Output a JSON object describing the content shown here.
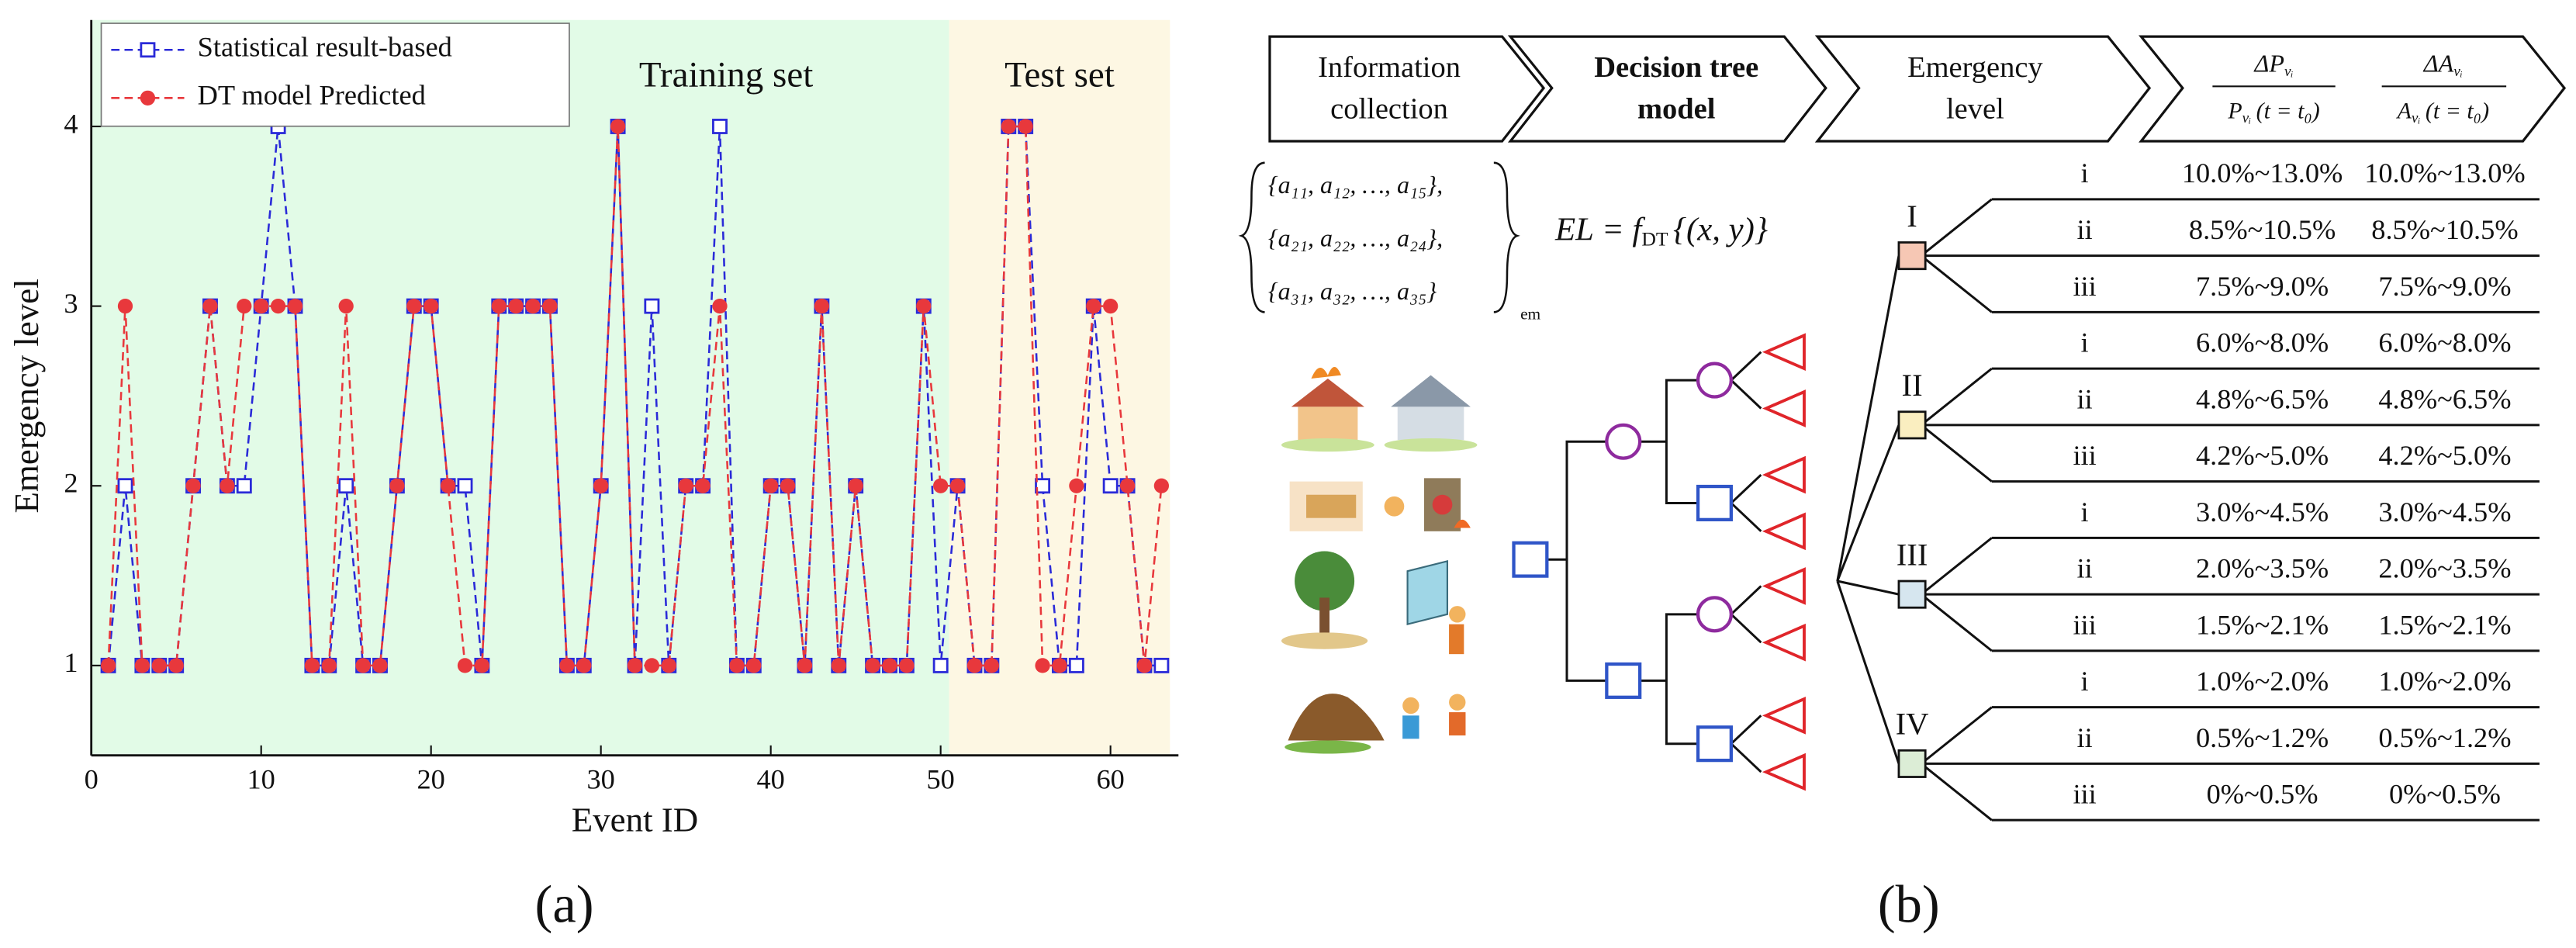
{
  "chart_data": {
    "type": "line",
    "x_label": "Event ID",
    "y_label": "Emergency level",
    "xlim": [
      0,
      64
    ],
    "ylim": [
      0.5,
      4.5
    ],
    "xticks": [
      0,
      10,
      20,
      30,
      40,
      50,
      60
    ],
    "yticks": [
      1,
      2,
      3,
      4
    ],
    "regions": [
      {
        "label": "Training set",
        "range": [
          0,
          50.5
        ],
        "color": "#e2fbe7"
      },
      {
        "label": "Test set",
        "range": [
          50.5,
          63.5
        ],
        "color": "#fdf7e3"
      }
    ],
    "x": [
      1,
      2,
      3,
      4,
      5,
      6,
      7,
      8,
      9,
      10,
      11,
      12,
      13,
      14,
      15,
      16,
      17,
      18,
      19,
      20,
      21,
      22,
      23,
      24,
      25,
      26,
      27,
      28,
      29,
      30,
      31,
      32,
      33,
      34,
      35,
      36,
      37,
      38,
      39,
      40,
      41,
      42,
      43,
      44,
      45,
      46,
      47,
      48,
      49,
      50,
      51,
      52,
      53,
      54,
      55,
      56,
      57,
      58,
      59,
      60,
      61,
      62,
      63
    ],
    "series": [
      {
        "name": "Statistical result-based",
        "color": "#2a2ad8",
        "marker": "open-square",
        "values": [
          1,
          2,
          1,
          1,
          1,
          2,
          3,
          2,
          2,
          3,
          4,
          3,
          1,
          1,
          2,
          1,
          1,
          2,
          3,
          3,
          2,
          2,
          1,
          3,
          3,
          3,
          3,
          1,
          1,
          2,
          4,
          1,
          3,
          1,
          2,
          2,
          4,
          1,
          1,
          2,
          2,
          1,
          3,
          1,
          2,
          1,
          1,
          1,
          3,
          1,
          2,
          1,
          1,
          4,
          4,
          2,
          1,
          1,
          3,
          2,
          2,
          1,
          1
        ]
      },
      {
        "name": "DT model Predicted",
        "color": "#e8383c",
        "marker": "circle",
        "values": [
          1,
          3,
          1,
          1,
          1,
          2,
          3,
          2,
          3,
          3,
          3,
          3,
          1,
          1,
          3,
          1,
          1,
          2,
          3,
          3,
          2,
          1,
          1,
          3,
          3,
          3,
          3,
          1,
          1,
          2,
          4,
          1,
          1,
          1,
          2,
          2,
          3,
          1,
          1,
          2,
          2,
          1,
          3,
          1,
          2,
          1,
          1,
          1,
          3,
          2,
          2,
          1,
          1,
          4,
          4,
          1,
          1,
          2,
          3,
          3,
          2,
          1,
          2
        ]
      }
    ],
    "legend": "upper left"
  },
  "panel_labels": [
    "(a)",
    "(b)"
  ],
  "diagram": {
    "header": [
      "Information collection",
      "Decision tree model",
      "Emergency level"
    ],
    "header_lines": [
      [
        "Information",
        "collection"
      ],
      [
        "Decision tree",
        "model"
      ],
      [
        "Emergency",
        "level"
      ]
    ],
    "ratio_p": {
      "numerator": "ΔP",
      "sub": "vᵢ",
      "denominator": "P",
      "arg": "(t = t₀)"
    },
    "ratio_a": {
      "numerator": "ΔA",
      "sub": "vᵢ",
      "denominator": "A",
      "arg": "(t = t₀)"
    },
    "feature_sets": [
      "{a₁₁, a₁₂, …, a₁₅},",
      "{a₂₁, a₂₂, …, a₂₄},",
      "{a₃₁, a₃₂, …, a₃₅}"
    ],
    "feature_sub": "em",
    "equation": {
      "lhs": "EL = f",
      "sub": "DT",
      "rhs": "{(x, y)}"
    },
    "levels": [
      {
        "name": "I",
        "rows": [
          [
            "i",
            "10.0%~13.0%",
            "10.0%~13.0%"
          ],
          [
            "ii",
            "8.5%~10.5%",
            "8.5%~10.5%"
          ],
          [
            "iii",
            "7.5%~9.0%",
            "7.5%~9.0%"
          ]
        ]
      },
      {
        "name": "II",
        "rows": [
          [
            "i",
            "6.0%~8.0%",
            "6.0%~8.0%"
          ],
          [
            "ii",
            "4.8%~6.5%",
            "4.8%~6.5%"
          ],
          [
            "iii",
            "4.2%~5.0%",
            "4.2%~5.0%"
          ]
        ]
      },
      {
        "name": "III",
        "rows": [
          [
            "i",
            "3.0%~4.5%",
            "3.0%~4.5%"
          ],
          [
            "ii",
            "2.0%~3.5%",
            "2.0%~3.5%"
          ],
          [
            "iii",
            "1.5%~2.1%",
            "1.5%~2.1%"
          ]
        ]
      },
      {
        "name": "IV",
        "rows": [
          [
            "i",
            "1.0%~2.0%",
            "1.0%~2.0%"
          ],
          [
            "ii",
            "0.5%~1.2%",
            "0.5%~1.2%"
          ],
          [
            "iii",
            "0%~0.5%",
            "0%~0.5%"
          ]
        ]
      }
    ]
  }
}
